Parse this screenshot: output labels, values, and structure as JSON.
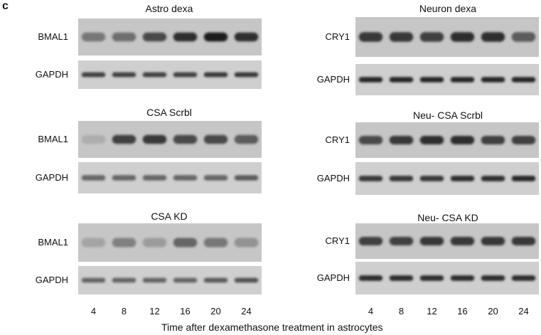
{
  "figure": {
    "panel_letter": "c",
    "x_axis_label": "Time after dexamethasone treatment in astrocytes",
    "time_points": [
      "4",
      "8",
      "12",
      "16",
      "20",
      "24"
    ],
    "left_column": {
      "panels": [
        {
          "title": "Astro dexa",
          "rows": [
            {
              "label": "BMAL1",
              "band_intensity": [
                0.45,
                0.5,
                0.7,
                0.85,
                0.95,
                0.85
              ]
            },
            {
              "label": "GAPDH",
              "band_intensity": [
                0.75,
                0.75,
                0.75,
                0.75,
                0.8,
                0.8
              ]
            }
          ]
        },
        {
          "title": "CSA Scrbl",
          "rows": [
            {
              "label": "BMAL1",
              "band_intensity": [
                0.15,
                0.75,
                0.8,
                0.7,
                0.7,
                0.6
              ]
            },
            {
              "label": "GAPDH",
              "band_intensity": [
                0.55,
                0.55,
                0.55,
                0.55,
                0.55,
                0.6
              ]
            }
          ]
        },
        {
          "title": "CSA KD",
          "rows": [
            {
              "label": "BMAL1",
              "band_intensity": [
                0.2,
                0.4,
                0.25,
                0.55,
                0.45,
                0.3
              ]
            },
            {
              "label": "GAPDH",
              "band_intensity": [
                0.55,
                0.55,
                0.55,
                0.55,
                0.6,
                0.65
              ]
            }
          ]
        }
      ]
    },
    "right_column": {
      "panels": [
        {
          "title": "Neuron dexa",
          "rows": [
            {
              "label": "CRY1",
              "band_intensity": [
                0.8,
                0.8,
                0.75,
                0.85,
                0.85,
                0.6
              ]
            },
            {
              "label": "GAPDH",
              "band_intensity": [
                0.9,
                0.9,
                0.9,
                0.9,
                0.9,
                0.9
              ]
            }
          ]
        },
        {
          "title": "Neu- CSA Scrbl",
          "rows": [
            {
              "label": "CRY1",
              "band_intensity": [
                0.7,
                0.8,
                0.85,
                0.85,
                0.75,
                0.75
              ]
            },
            {
              "label": "GAPDH",
              "band_intensity": [
                0.8,
                0.8,
                0.8,
                0.85,
                0.85,
                0.9
              ]
            }
          ]
        },
        {
          "title": "Neu- CSA KD",
          "rows": [
            {
              "label": "CRY1",
              "band_intensity": [
                0.75,
                0.75,
                0.8,
                0.8,
                0.8,
                0.8
              ]
            },
            {
              "label": "GAPDH",
              "band_intensity": [
                0.85,
                0.85,
                0.85,
                0.85,
                0.85,
                0.85
              ]
            }
          ]
        }
      ]
    }
  }
}
